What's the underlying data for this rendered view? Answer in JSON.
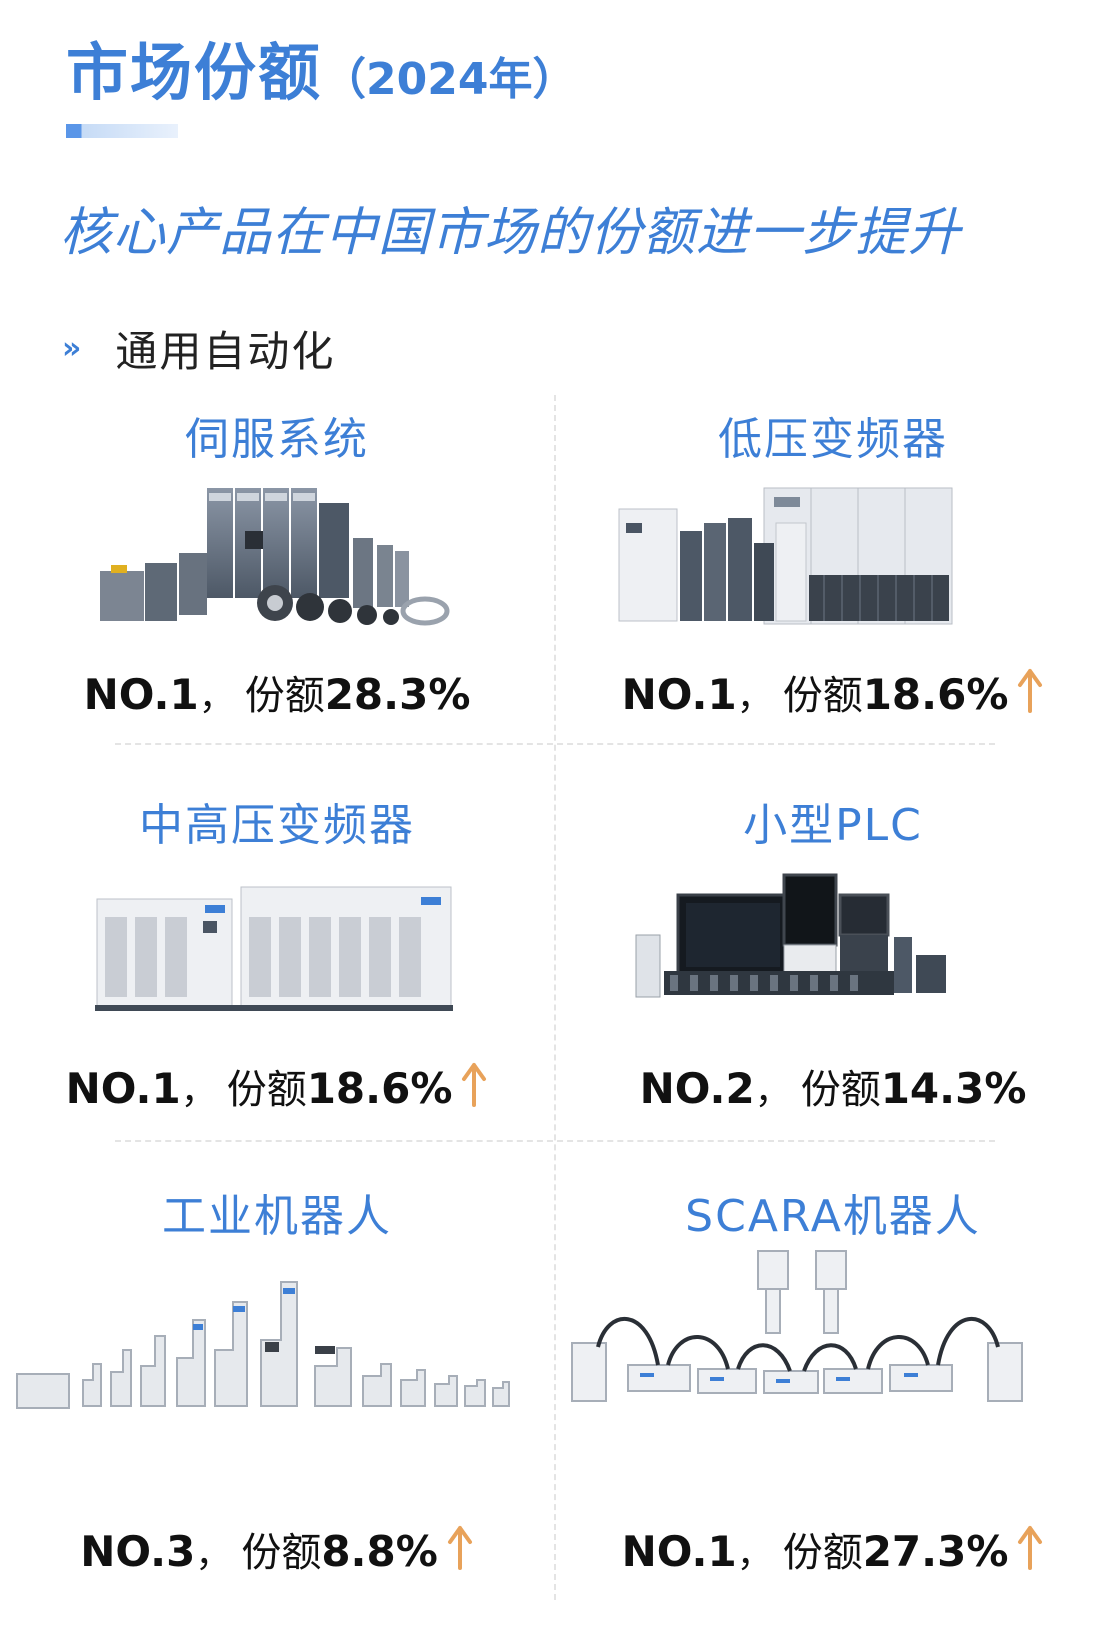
{
  "header": {
    "title": "市场份额",
    "year": "（2024年）",
    "subtitle": "核心产品在中国市场的份额进一步提升"
  },
  "section": {
    "chevron": "»",
    "label": "通用自动化"
  },
  "products": [
    {
      "name": "伺服系统",
      "rank": "NO.1",
      "sep": "，",
      "share_label": "份额",
      "share": "28.3%",
      "trend_up": false
    },
    {
      "name": "低压变频器",
      "rank": "NO.1",
      "sep": "，",
      "share_label": "份额",
      "share": "18.6%",
      "trend_up": true
    },
    {
      "name": "中高压变频器",
      "rank": "NO.1",
      "sep": "，",
      "share_label": "份额",
      "share": "18.6%",
      "trend_up": true
    },
    {
      "name": "小型PLC",
      "rank": "NO.2",
      "sep": "，",
      "share_label": "份额",
      "share": "14.3%",
      "trend_up": false
    },
    {
      "name": "工业机器人",
      "rank": "NO.3",
      "sep": "，",
      "share_label": "份额",
      "share": "8.8%",
      "trend_up": true
    },
    {
      "name": "SCARA机器人",
      "rank": "NO.1",
      "sep": "，",
      "share_label": "份额",
      "share": "27.3%",
      "trend_up": true
    }
  ],
  "colors": {
    "accent": "#3d7fd6",
    "arrow": "#e8a25a",
    "text": "#111111",
    "divider": "#e4e4e4"
  }
}
